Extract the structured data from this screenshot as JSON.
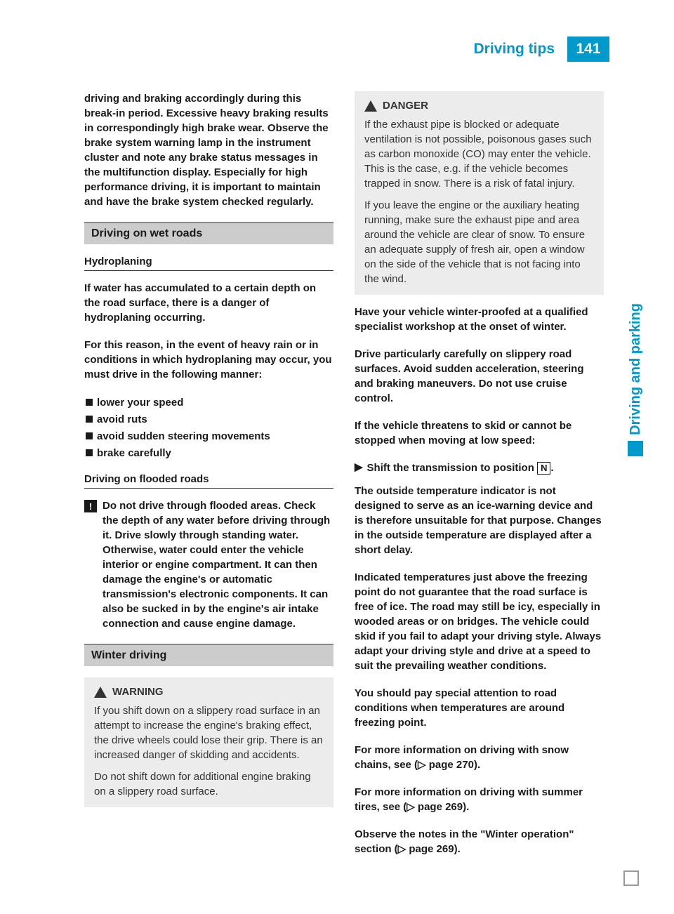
{
  "header": {
    "title": "Driving tips",
    "page_number": "141"
  },
  "side_tab": "Driving and parking",
  "col1": {
    "intro": "driving and braking accordingly during this break-in period.\nExcessive heavy braking results in correspondingly high brake wear. Observe the brake system warning lamp in the instrument cluster and note any brake status messages in the multifunction display. Especially for high performance driving, it is important to maintain and have the brake system checked regularly.",
    "section1_title": "Driving on wet roads",
    "sub1_title": "Hydroplaning",
    "sub1_p1": "If water has accumulated to a certain depth on the road surface, there is a danger of hydroplaning occurring.",
    "sub1_p2": "For this reason, in the event of heavy rain or in conditions in which hydroplaning may occur, you must drive in the following manner:",
    "bullets": [
      "lower your speed",
      "avoid ruts",
      "avoid sudden steering movements",
      "brake carefully"
    ],
    "sub2_title": "Driving on flooded roads",
    "notice_text": "Do not drive through flooded areas. Check the depth of any water before driving through it. Drive slowly through standing water. Otherwise, water could enter the vehicle interior or engine compartment. It can then damage the engine's or automatic transmission's electronic components. It can also be sucked in by the engine's air intake connection and cause engine damage.",
    "section2_title": "Winter driving",
    "warning_title": "WARNING",
    "warning_p1": "If you shift down on a slippery road surface in an attempt to increase the engine's braking effect, the drive wheels could lose their grip. There is an increased danger of skidding and accidents.",
    "warning_p2": "Do not shift down for additional engine braking on a slippery road surface."
  },
  "col2": {
    "danger_title": "DANGER",
    "danger_p1": "If the exhaust pipe is blocked or adequate ventilation is not possible, poisonous gases such as carbon monoxide (CO) may enter the vehicle. This is the case, e.g. if the vehicle becomes trapped in snow. There is a risk of fatal injury.",
    "danger_p2": "If you leave the engine or the auxiliary heating running, make sure the exhaust pipe and area around the vehicle are clear of snow. To ensure an adequate supply of fresh air, open a window on the side of the vehicle that is not facing into the wind.",
    "p1": "Have your vehicle winter-proofed at a qualified specialist workshop at the onset of winter.",
    "p2": "Drive particularly carefully on slippery road surfaces. Avoid sudden acceleration, steering and braking maneuvers. Do not use cruise control.",
    "p3": "If the vehicle threatens to skid or cannot be stopped when moving at low speed:",
    "arrow_text_pre": "Shift the transmission to position ",
    "pos_letter": "N",
    "arrow_text_post": ".",
    "p4": "The outside temperature indicator is not designed to serve as an ice-warning device and is therefore unsuitable for that purpose. Changes in the outside temperature are displayed after a short delay.",
    "p5": "Indicated temperatures just above the freezing point do not guarantee that the road surface is free of ice. The road may still be icy, especially in wooded areas or on bridges. The vehicle could skid if you fail to adapt your driving style. Always adapt your driving style and drive at a speed to suit the prevailing weather conditions.",
    "p6": "You should pay special attention to road conditions when temperatures are around freezing point.",
    "p7": "For more information on driving with snow chains, see (▷ page 270).",
    "p8": "For more information on driving with summer tires, see (▷ page 269).",
    "p9": "Observe the notes in the \"Winter operation\" section (▷ page 269)."
  }
}
